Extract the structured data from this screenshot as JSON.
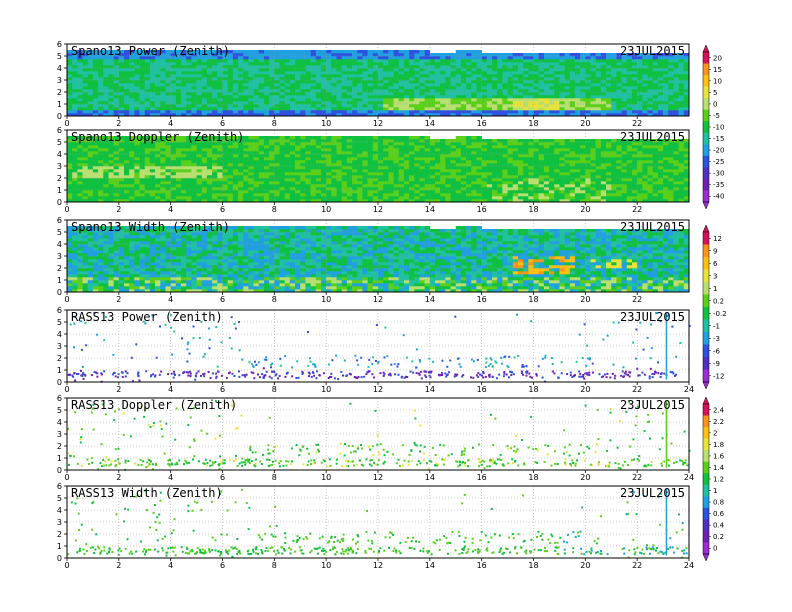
{
  "chart_data": [
    {
      "type": "heatmap",
      "title": "Spano13 Power (Zenith)",
      "date_label": "23JUL2015",
      "xlim": [
        0,
        24
      ],
      "ylim": [
        0,
        6
      ],
      "x_ticks": [
        "0",
        "2",
        "4",
        "6",
        "8",
        "10",
        "12",
        "14",
        "16",
        "18",
        "20",
        "22"
      ],
      "y_ticks": [
        "0",
        "1",
        "2",
        "3",
        "4",
        "5",
        "6"
      ],
      "field": "power",
      "coverage_height_km": [
        5.6,
        5.6,
        5.6,
        5.6,
        5.6,
        5.6,
        5.6,
        5.6,
        5.6,
        5.6,
        5.6,
        5.6,
        5.5,
        5.5,
        5.3,
        5.6,
        5.3,
        5.3,
        5.3,
        5.3,
        5.3,
        5.3,
        5.3,
        5.3
      ],
      "colorbar_ref": 0
    },
    {
      "type": "heatmap",
      "title": "Spano13 Doppler (Zenith)",
      "date_label": "23JUL2015",
      "xlim": [
        0,
        24
      ],
      "ylim": [
        0,
        6
      ],
      "x_ticks": [
        "0",
        "2",
        "4",
        "6",
        "8",
        "10",
        "12",
        "14",
        "16",
        "18",
        "20",
        "22"
      ],
      "y_ticks": [
        "0",
        "1",
        "2",
        "3",
        "4",
        "5",
        "6"
      ],
      "field": "doppler",
      "coverage_height_km": [
        5.6,
        5.6,
        5.6,
        5.6,
        5.6,
        5.6,
        5.6,
        5.6,
        5.6,
        5.6,
        5.6,
        5.6,
        5.5,
        5.5,
        5.3,
        5.6,
        5.3,
        5.3,
        5.3,
        5.3,
        5.3,
        5.3,
        5.3,
        5.3
      ],
      "colorbar_ref": 0
    },
    {
      "type": "heatmap",
      "title": "Spano13 Width (Zenith)",
      "date_label": "23JUL2015",
      "xlim": [
        0,
        24
      ],
      "ylim": [
        0,
        6
      ],
      "x_ticks": [
        "0",
        "2",
        "4",
        "6",
        "8",
        "10",
        "12",
        "14",
        "16",
        "18",
        "20",
        "22"
      ],
      "y_ticks": [
        "0",
        "1",
        "2",
        "3",
        "4",
        "5",
        "6"
      ],
      "field": "width",
      "coverage_height_km": [
        5.6,
        5.6,
        5.6,
        5.6,
        5.6,
        5.6,
        5.6,
        5.6,
        5.6,
        5.6,
        5.6,
        5.6,
        5.5,
        5.5,
        5.3,
        5.6,
        5.3,
        5.3,
        5.3,
        5.3,
        5.3,
        5.3,
        5.3,
        5.3
      ],
      "colorbar_ref": 1
    },
    {
      "type": "scatter",
      "title": "RASS13 Power (Zenith)",
      "date_label": "23JUL2015",
      "xlim": [
        0,
        24
      ],
      "ylim": [
        0,
        6
      ],
      "x_ticks": [
        "0",
        "2",
        "4",
        "6",
        "8",
        "10",
        "12",
        "14",
        "16",
        "18",
        "20",
        "22",
        "24"
      ],
      "y_ticks": [
        "0",
        "1",
        "2",
        "3",
        "4",
        "5",
        "6"
      ],
      "field": "rass-power",
      "colorbar_ref": 1
    },
    {
      "type": "scatter",
      "title": "RASS13 Doppler (Zenith)",
      "date_label": "23JUL2015",
      "xlim": [
        0,
        24
      ],
      "ylim": [
        0,
        6
      ],
      "x_ticks": [
        "0",
        "2",
        "4",
        "6",
        "8",
        "10",
        "12",
        "14",
        "16",
        "18",
        "20",
        "22",
        "24"
      ],
      "y_ticks": [
        "0",
        "1",
        "2",
        "3",
        "4",
        "5",
        "6"
      ],
      "field": "rass-doppler",
      "colorbar_ref": 2
    },
    {
      "type": "scatter",
      "title": "RASS13 Width (Zenith)",
      "date_label": "23JUL2015",
      "xlim": [
        0,
        24
      ],
      "ylim": [
        0,
        6
      ],
      "x_ticks": [
        "0",
        "2",
        "4",
        "6",
        "8",
        "10",
        "12",
        "14",
        "16",
        "18",
        "20",
        "22",
        "24"
      ],
      "y_ticks": [
        "0",
        "1",
        "2",
        "3",
        "4",
        "5",
        "6"
      ],
      "field": "rass-width",
      "colorbar_ref": 2
    }
  ],
  "colorbars": [
    {
      "labels": [
        "20",
        "15",
        "10",
        "5",
        "0",
        "-5",
        "-10",
        "-15",
        "-20",
        "-25",
        "-30",
        "-35",
        "-40"
      ],
      "colors": [
        "#d4145a",
        "#f7941d",
        "#fcc010",
        "#e8e33c",
        "#b8e070",
        "#5ad01a",
        "#10c040",
        "#20c0a0",
        "#20a0e0",
        "#3050e0",
        "#5030c0",
        "#7020b0",
        "#9b30d0"
      ]
    },
    {
      "labels": [
        "12",
        "9",
        "6",
        "3",
        "1",
        "0.2",
        "-0.2",
        "-1",
        "-3",
        "-6",
        "-9",
        "-12"
      ],
      "colors": [
        "#d4145a",
        "#f7941d",
        "#fcc010",
        "#e8e33c",
        "#b8e070",
        "#5ad01a",
        "#10c040",
        "#20c0a0",
        "#20a0e0",
        "#3050e0",
        "#5030c0",
        "#9b30d0"
      ]
    },
    {
      "labels": [
        "2.4",
        "2.2",
        "2",
        "1.8",
        "1.6",
        "1.4",
        "1.2",
        "1",
        "0.8",
        "0.6",
        "0.4",
        "0.2",
        "0"
      ],
      "colors": [
        "#d4145a",
        "#f7941d",
        "#fcc010",
        "#e8e33c",
        "#b8e070",
        "#5ad01a",
        "#10c040",
        "#20c0a0",
        "#20a0e0",
        "#3050e0",
        "#5030c0",
        "#7020b0",
        "#9b30d0"
      ]
    }
  ]
}
